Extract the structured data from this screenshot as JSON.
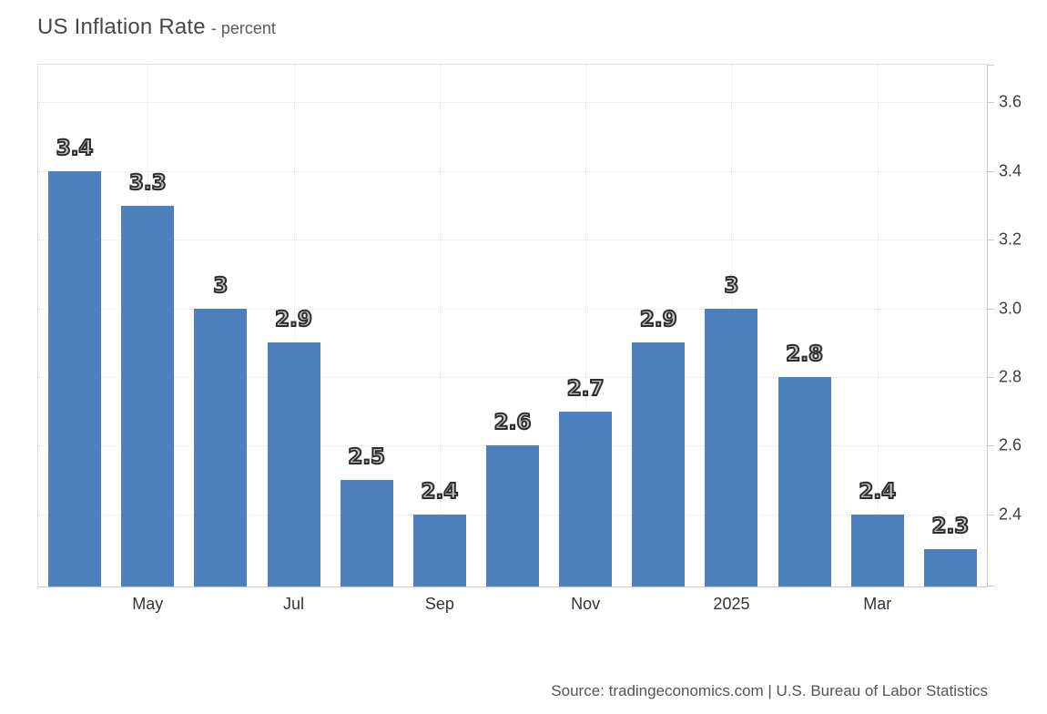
{
  "header": {
    "title": "US Inflation Rate",
    "subtitle": "- percent"
  },
  "footer": {
    "source": "Source: tradingeconomics.com | U.S. Bureau of Labor Statistics"
  },
  "chart_data": {
    "type": "bar",
    "title": "US Inflation Rate",
    "unit": "percent",
    "values": [
      3.4,
      3.3,
      3.0,
      2.9,
      2.5,
      2.4,
      2.6,
      2.7,
      2.9,
      3.0,
      2.8,
      2.4,
      2.3
    ],
    "bar_labels": [
      "3.4",
      "3.3",
      "3",
      "2.9",
      "2.5",
      "2.4",
      "2.6",
      "2.7",
      "2.9",
      "3",
      "2.8",
      "2.4",
      "2.3"
    ],
    "x_ticks": [
      {
        "label": "May",
        "index": 1
      },
      {
        "label": "Jul",
        "index": 3
      },
      {
        "label": "Sep",
        "index": 5
      },
      {
        "label": "Nov",
        "index": 7
      },
      {
        "label": "2025",
        "index": 9
      },
      {
        "label": "Mar",
        "index": 11
      }
    ],
    "y_ticks": [
      "3.6",
      "3.4",
      "3.2",
      "3.0",
      "2.8",
      "2.6",
      "2.4"
    ],
    "ylim": [
      2.19,
      3.71
    ],
    "yaxis_position": "right",
    "grid": "dotted",
    "legend": "none",
    "bar_color": "#4e80bd"
  }
}
